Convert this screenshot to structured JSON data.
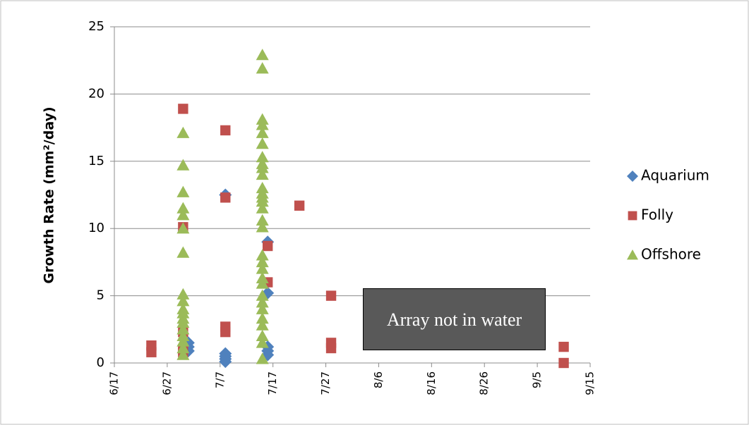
{
  "chart_data": {
    "type": "scatter",
    "y_label": "Growth Rate (mm²/day)",
    "annotation": "Array not in water",
    "ylim": [
      0,
      25
    ],
    "yticks": [
      0,
      5,
      10,
      15,
      20,
      25
    ],
    "xlim": [
      168,
      258
    ],
    "xticks": [
      {
        "value": 168,
        "label": "6/17"
      },
      {
        "value": 178,
        "label": "6/27"
      },
      {
        "value": 188,
        "label": "7/7"
      },
      {
        "value": 198,
        "label": "7/17"
      },
      {
        "value": 208,
        "label": "7/27"
      },
      {
        "value": 218,
        "label": "8/6"
      },
      {
        "value": 228,
        "label": "8/16"
      },
      {
        "value": 238,
        "label": "8/26"
      },
      {
        "value": 248,
        "label": "9/5"
      },
      {
        "value": 258,
        "label": "9/15"
      }
    ],
    "grid": true,
    "legend": "right",
    "series": [
      {
        "name": "Aquarium",
        "color": "#4f81bd",
        "marker": "diamond",
        "x": [
          182,
          182,
          182,
          189,
          189,
          189,
          189,
          189,
          197,
          197,
          197,
          197,
          197
        ],
        "values": [
          1.5,
          1.2,
          0.9,
          12.5,
          0.7,
          0.5,
          0.3,
          0.1,
          9.0,
          5.2,
          1.2,
          0.9,
          0.6
        ]
      },
      {
        "name": "Folly",
        "color": "#c0504d",
        "marker": "square",
        "x": [
          175,
          175,
          181,
          181,
          181,
          181,
          181,
          189,
          189,
          189,
          189,
          197,
          197,
          203,
          209,
          209,
          209,
          253,
          253
        ],
        "values": [
          1.3,
          0.8,
          18.9,
          10.1,
          2.3,
          1.0,
          0.8,
          17.3,
          12.3,
          2.7,
          2.3,
          8.7,
          6.0,
          11.7,
          5.0,
          1.5,
          1.1,
          1.2,
          0.0
        ]
      },
      {
        "name": "Offshore",
        "color": "#9bbb59",
        "marker": "triangle",
        "x": [
          181,
          181,
          181,
          181,
          181,
          181,
          181,
          181,
          181,
          181,
          181,
          181,
          181,
          181,
          181,
          181,
          181,
          181,
          196,
          196,
          196,
          196,
          196,
          196,
          196,
          196,
          196,
          196,
          196,
          196,
          196,
          196,
          196,
          196,
          196,
          196,
          196,
          196,
          196,
          196,
          196,
          196,
          196,
          196,
          196,
          196,
          196,
          196
        ],
        "values": [
          17.1,
          14.7,
          12.7,
          11.5,
          11.0,
          10.0,
          8.2,
          5.1,
          4.6,
          4.0,
          3.7,
          3.3,
          3.0,
          2.5,
          2.0,
          1.6,
          1.1,
          0.6,
          22.9,
          21.9,
          18.1,
          17.7,
          17.1,
          16.3,
          15.3,
          14.8,
          14.5,
          14.0,
          13.0,
          12.6,
          12.3,
          12.0,
          11.5,
          10.6,
          10.1,
          8.0,
          7.5,
          7.0,
          6.3,
          5.9,
          5.0,
          4.5,
          4.0,
          3.3,
          2.8,
          2.0,
          1.5,
          0.3
        ]
      }
    ]
  }
}
